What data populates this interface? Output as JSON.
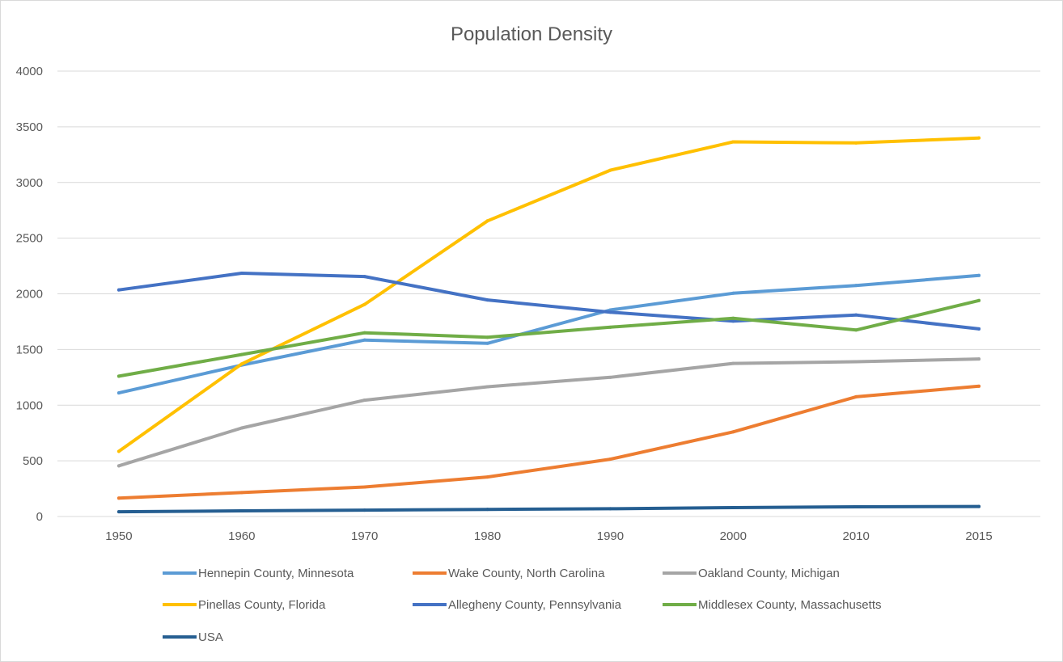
{
  "chart_data": {
    "type": "line",
    "title": "Population Density",
    "xlabel": "",
    "ylabel": "",
    "categories": [
      "1950",
      "1960",
      "1970",
      "1980",
      "1990",
      "2000",
      "2010",
      "2015"
    ],
    "ylim": [
      0,
      4000
    ],
    "yticks": [
      0,
      500,
      1000,
      1500,
      2000,
      2500,
      3000,
      3500,
      4000
    ],
    "grid": "horizontal",
    "legend_position": "bottom",
    "series": [
      {
        "name": "Hennepin County, Minnesota",
        "color": "#5b9bd5",
        "values": [
          1110,
          1360,
          1585,
          1555,
          1855,
          2005,
          2075,
          2165
        ]
      },
      {
        "name": "Wake County, North Carolina",
        "color": "#ed7d31",
        "values": [
          165,
          215,
          265,
          355,
          515,
          760,
          1075,
          1170
        ]
      },
      {
        "name": "Oakland County, Michigan",
        "color": "#a5a5a5",
        "values": [
          455,
          795,
          1045,
          1165,
          1250,
          1375,
          1390,
          1415
        ]
      },
      {
        "name": "Pinellas County, Florida",
        "color": "#ffc000",
        "values": [
          585,
          1370,
          1905,
          2655,
          3110,
          3365,
          3355,
          3400
        ]
      },
      {
        "name": "Allegheny County, Pennsylvania",
        "color": "#4472c4",
        "values": [
          2035,
          2185,
          2155,
          1945,
          1835,
          1755,
          1810,
          1685
        ]
      },
      {
        "name": "Middlesex County, Massachusetts",
        "color": "#70ad47",
        "values": [
          1260,
          1455,
          1650,
          1610,
          1700,
          1780,
          1675,
          1940
        ]
      },
      {
        "name": "USA",
        "color": "#255e91",
        "values": [
          43,
          51,
          57,
          64,
          70,
          80,
          87,
          90
        ]
      }
    ]
  }
}
